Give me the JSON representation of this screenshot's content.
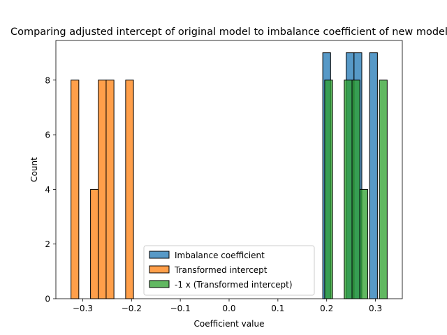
{
  "chart_data": {
    "type": "bar",
    "title": "Comparing adjusted intercept of original model to imbalance coefficient of new model",
    "xlabel": "Coefficient value",
    "ylabel": "Count",
    "xlim": [
      -0.355,
      0.355
    ],
    "ylim": [
      0,
      9.45
    ],
    "xticks": [
      -0.3,
      -0.2,
      -0.1,
      0.0,
      0.1,
      0.2,
      0.3
    ],
    "xtick_labels": [
      "−0.3",
      "−0.2",
      "−0.1",
      "0.0",
      "0.1",
      "0.2",
      "0.3"
    ],
    "yticks": [
      0,
      2,
      4,
      6,
      8
    ],
    "ytick_labels": [
      "0",
      "2",
      "4",
      "6",
      "8"
    ],
    "legend_position": "lower-center",
    "series": [
      {
        "name": "Imbalance coefficient",
        "color": "#1f77b4",
        "alpha": 0.75,
        "bins": [
          {
            "x0": 0.192,
            "x1": 0.208,
            "count": 9
          },
          {
            "x0": 0.24,
            "x1": 0.256,
            "count": 9
          },
          {
            "x0": 0.256,
            "x1": 0.272,
            "count": 9
          },
          {
            "x0": 0.288,
            "x1": 0.304,
            "count": 9
          }
        ]
      },
      {
        "name": "Transformed intercept",
        "color": "#ff7f0e",
        "alpha": 0.75,
        "bins": [
          {
            "x0": -0.324,
            "x1": -0.308,
            "count": 8
          },
          {
            "x0": -0.284,
            "x1": -0.268,
            "count": 4
          },
          {
            "x0": -0.268,
            "x1": -0.252,
            "count": 8
          },
          {
            "x0": -0.252,
            "x1": -0.236,
            "count": 8
          },
          {
            "x0": -0.212,
            "x1": -0.196,
            "count": 8
          }
        ]
      },
      {
        "name": "-1 x (Transformed intercept)",
        "color": "#2ca02c",
        "alpha": 0.75,
        "bins": [
          {
            "x0": 0.196,
            "x1": 0.212,
            "count": 8
          },
          {
            "x0": 0.236,
            "x1": 0.252,
            "count": 8
          },
          {
            "x0": 0.252,
            "x1": 0.268,
            "count": 8
          },
          {
            "x0": 0.268,
            "x1": 0.284,
            "count": 4
          },
          {
            "x0": 0.308,
            "x1": 0.324,
            "count": 8
          }
        ]
      }
    ]
  }
}
